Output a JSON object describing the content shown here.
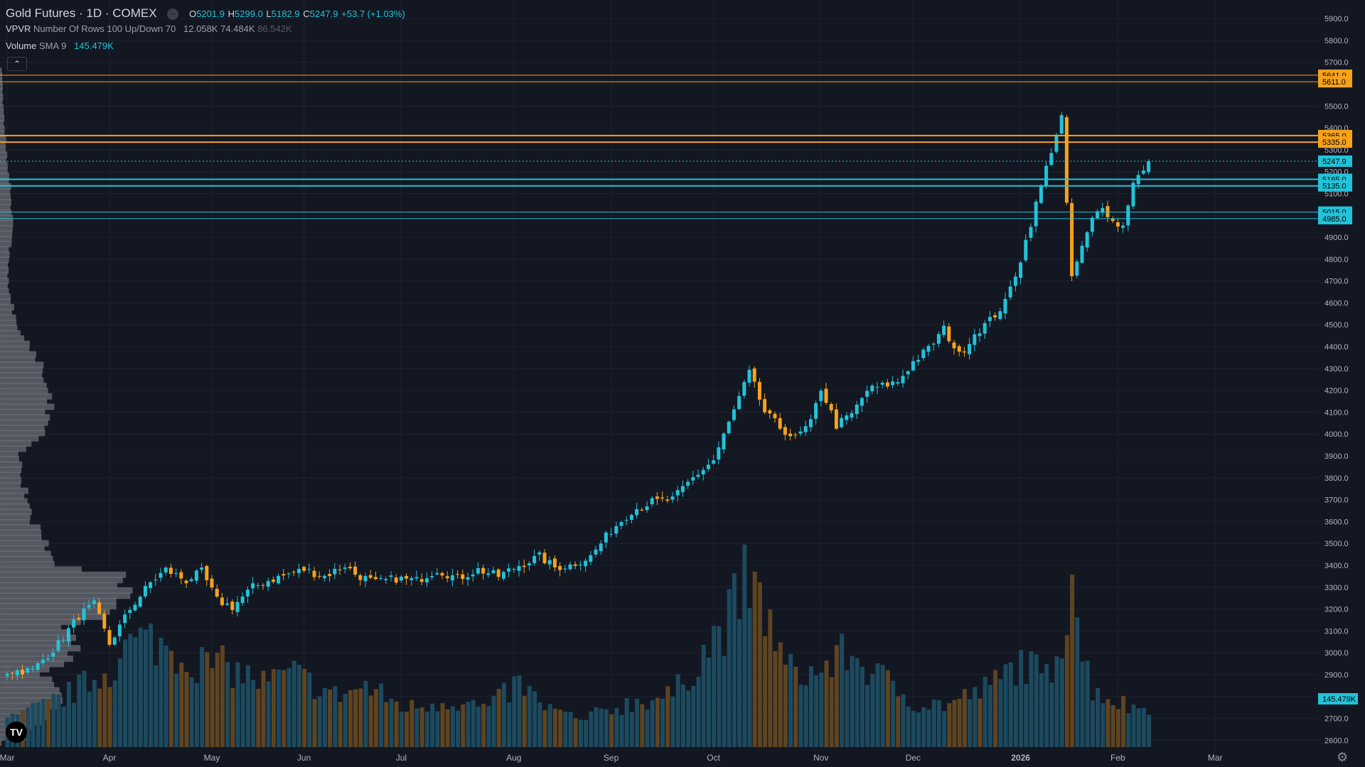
{
  "header": {
    "symbol": "Gold Futures · 1D · COMEX",
    "o_label": "O",
    "o_value": "5201.9",
    "h_label": "H",
    "h_value": "5299.0",
    "l_label": "L",
    "l_value": "5182.9",
    "c_label": "C",
    "c_value": "5247.9",
    "change": "+53.7 (+1.03%)",
    "vpvr_label": "VPVR",
    "vpvr_params": "Number Of Rows 100 Up/Down 70",
    "vpvr_up": "12.058K",
    "vpvr_down": "74.484K",
    "vpvr_total": "86.542K",
    "volume_label": "Volume",
    "volume_params": "SMA 9",
    "volume_value": "145.479K",
    "collapse_icon": "chevron-up-icon",
    "hide_icon": "minus-icon",
    "logo_text": "TV"
  },
  "colors": {
    "background": "#131722",
    "up": "#22c3d8",
    "down": "#f7a21b",
    "up_volume": "#1c4a5e",
    "down_volume": "#5e4420",
    "profile": "#6b6e75",
    "text": "#d1d4dc",
    "axis_text": "#b2b5be"
  },
  "chart_data": {
    "type": "candlestick",
    "symbol": "Gold Futures",
    "interval": "1D",
    "exchange": "COMEX",
    "ylim": [
      2575,
      5920
    ],
    "y_ticks": [
      2600,
      2700,
      2800,
      2900,
      3000,
      3100,
      3200,
      3300,
      3400,
      3500,
      3600,
      3700,
      3800,
      3900,
      4000,
      4100,
      4200,
      4300,
      4400,
      4500,
      4600,
      4700,
      4800,
      4900,
      5000,
      5100,
      5200,
      5300,
      5400,
      5500,
      5600,
      5700,
      5800,
      5900
    ],
    "y_tick_labels": [
      "2600.0",
      "2700.0",
      "2800.0",
      "2900.0",
      "3000.0",
      "3100.0",
      "3200.0",
      "3300.0",
      "3400.0",
      "3500.0",
      "3600.0",
      "3700.0",
      "3800.0",
      "3900.0",
      "4000.0",
      "4100.0",
      "4200.0",
      "4300.0",
      "4400.0",
      "4500.0",
      "4600.0",
      "4700.0",
      "4800.0",
      "4900.0",
      "5000.0",
      "5100.0",
      "5200.0",
      "5300.0",
      "5400.0",
      "5500.0",
      "5600.0",
      "5700.0",
      "5800.0",
      "5900.0"
    ],
    "x_labels": [
      {
        "label": "Mar",
        "bar": 0
      },
      {
        "label": "Apr",
        "bar": 20
      },
      {
        "label": "May",
        "bar": 40
      },
      {
        "label": "Jun",
        "bar": 58
      },
      {
        "label": "Jul",
        "bar": 77
      },
      {
        "label": "Aug",
        "bar": 99
      },
      {
        "label": "Sep",
        "bar": 118
      },
      {
        "label": "Oct",
        "bar": 138
      },
      {
        "label": "Nov",
        "bar": 159
      },
      {
        "label": "Dec",
        "bar": 177
      },
      {
        "label": "2026",
        "bar": 198
      },
      {
        "label": "Feb",
        "bar": 217
      },
      {
        "label": "Mar",
        "bar": 236
      }
    ],
    "price_levels": [
      {
        "value": 5641,
        "label": "5641.0",
        "color": "#f7a21b",
        "weight": "thin"
      },
      {
        "value": 5611,
        "label": "5611.0",
        "color": "#f7a21b",
        "weight": "thin"
      },
      {
        "value": 5365,
        "label": "5365.0",
        "color": "#f7a21b",
        "weight": "thick"
      },
      {
        "value": 5335,
        "label": "5335.0",
        "color": "#f7a21b",
        "weight": "thick"
      },
      {
        "value": 5165,
        "label": "5165.0",
        "color": "#22c3d8",
        "weight": "thick"
      },
      {
        "value": 5135,
        "label": "5135.0",
        "color": "#22c3d8",
        "weight": "thick"
      },
      {
        "value": 5015,
        "label": "5015.0",
        "color": "#22c3d8",
        "weight": "thin"
      },
      {
        "value": 4985,
        "label": "4985.0",
        "color": "#22c3d8",
        "weight": "thin"
      }
    ],
    "last_price": {
      "value": 5247.9,
      "label": "5247.9"
    },
    "last_volume": {
      "label": "145.479K"
    },
    "volume_max": 430,
    "anchors": [
      [
        0,
        2915
      ],
      [
        5,
        2920
      ],
      [
        10,
        3040
      ],
      [
        14,
        3170
      ],
      [
        17,
        3220
      ],
      [
        20,
        3040
      ],
      [
        24,
        3200
      ],
      [
        28,
        3320
      ],
      [
        31,
        3380
      ],
      [
        35,
        3330
      ],
      [
        38,
        3370
      ],
      [
        41,
        3240
      ],
      [
        44,
        3210
      ],
      [
        48,
        3300
      ],
      [
        51,
        3330
      ],
      [
        55,
        3360
      ],
      [
        58,
        3380
      ],
      [
        62,
        3350
      ],
      [
        66,
        3400
      ],
      [
        68,
        3360
      ],
      [
        72,
        3320
      ],
      [
        76,
        3340
      ],
      [
        80,
        3330
      ],
      [
        84,
        3380
      ],
      [
        88,
        3340
      ],
      [
        92,
        3380
      ],
      [
        96,
        3350
      ],
      [
        100,
        3400
      ],
      [
        104,
        3440
      ],
      [
        107,
        3390
      ],
      [
        110,
        3400
      ],
      [
        114,
        3440
      ],
      [
        118,
        3560
      ],
      [
        122,
        3650
      ],
      [
        126,
        3690
      ],
      [
        130,
        3700
      ],
      [
        134,
        3800
      ],
      [
        138,
        3880
      ],
      [
        141,
        4050
      ],
      [
        145,
        4280
      ],
      [
        148,
        4100
      ],
      [
        151,
        4030
      ],
      [
        154,
        3980
      ],
      [
        157,
        4050
      ],
      [
        159,
        4210
      ],
      [
        162,
        4040
      ],
      [
        165,
        4090
      ],
      [
        168,
        4200
      ],
      [
        171,
        4220
      ],
      [
        174,
        4240
      ],
      [
        177,
        4330
      ],
      [
        180,
        4390
      ],
      [
        183,
        4480
      ],
      [
        186,
        4360
      ],
      [
        189,
        4460
      ],
      [
        192,
        4520
      ],
      [
        195,
        4600
      ],
      [
        198,
        4800
      ],
      [
        201,
        5050
      ],
      [
        204,
        5300
      ],
      [
        206,
        5450
      ],
      [
        207,
        5040
      ],
      [
        208,
        4720
      ],
      [
        210,
        4850
      ],
      [
        212,
        4980
      ],
      [
        214,
        5050
      ],
      [
        216,
        4970
      ],
      [
        218,
        4950
      ],
      [
        220,
        5160
      ],
      [
        222,
        5200
      ],
      [
        223,
        5247.9
      ]
    ],
    "volume_anchors": [
      [
        0,
        60
      ],
      [
        10,
        110
      ],
      [
        20,
        180
      ],
      [
        24,
        240
      ],
      [
        28,
        250
      ],
      [
        36,
        200
      ],
      [
        42,
        190
      ],
      [
        50,
        150
      ],
      [
        56,
        170
      ],
      [
        64,
        120
      ],
      [
        70,
        140
      ],
      [
        78,
        90
      ],
      [
        86,
        110
      ],
      [
        94,
        90
      ],
      [
        100,
        150
      ],
      [
        104,
        100
      ],
      [
        112,
        60
      ],
      [
        118,
        90
      ],
      [
        124,
        110
      ],
      [
        130,
        120
      ],
      [
        136,
        220
      ],
      [
        140,
        280
      ],
      [
        144,
        380
      ],
      [
        148,
        320
      ],
      [
        152,
        180
      ],
      [
        158,
        170
      ],
      [
        164,
        220
      ],
      [
        172,
        150
      ],
      [
        178,
        100
      ],
      [
        184,
        100
      ],
      [
        192,
        140
      ],
      [
        198,
        200
      ],
      [
        203,
        160
      ],
      [
        206,
        260
      ],
      [
        207,
        330
      ],
      [
        208,
        430
      ],
      [
        210,
        210
      ],
      [
        212,
        140
      ],
      [
        216,
        110
      ],
      [
        220,
        90
      ],
      [
        223,
        100
      ]
    ],
    "profile_anchors": [
      [
        2600,
        80
      ],
      [
        2700,
        150
      ],
      [
        2800,
        200
      ],
      [
        2900,
        140
      ],
      [
        3000,
        260
      ],
      [
        3100,
        200
      ],
      [
        3200,
        360
      ],
      [
        3300,
        390
      ],
      [
        3340,
        430
      ],
      [
        3400,
        200
      ],
      [
        3500,
        140
      ],
      [
        3600,
        110
      ],
      [
        3700,
        90
      ],
      [
        3800,
        70
      ],
      [
        3900,
        60
      ],
      [
        4000,
        150
      ],
      [
        4100,
        160
      ],
      [
        4200,
        150
      ],
      [
        4300,
        130
      ],
      [
        4400,
        100
      ],
      [
        4500,
        50
      ],
      [
        4600,
        40
      ],
      [
        4700,
        25
      ],
      [
        4800,
        30
      ],
      [
        4900,
        35
      ],
      [
        5000,
        40
      ],
      [
        5100,
        40
      ],
      [
        5200,
        25
      ],
      [
        5300,
        20
      ],
      [
        5400,
        15
      ],
      [
        5500,
        10
      ],
      [
        5600,
        8
      ],
      [
        5660,
        6
      ]
    ]
  }
}
